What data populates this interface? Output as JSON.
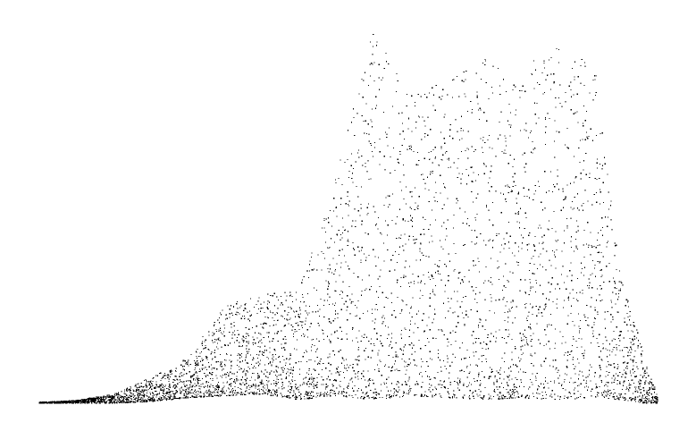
{
  "chart_data": {
    "type": "scatter",
    "title": "",
    "xlabel": "",
    "ylabel": "",
    "grid": false,
    "axes_visible": false,
    "xlim": [
      0,
      1000
    ],
    "ylim": [
      0,
      1000
    ],
    "marker_color": "#000000",
    "background_color": "#ffffff",
    "points_estimated": true,
    "density_profile": [
      {
        "x": 0,
        "min": 0,
        "max": 3
      },
      {
        "x": 60,
        "min": 0,
        "max": 8
      },
      {
        "x": 120,
        "min": 0,
        "max": 25
      },
      {
        "x": 180,
        "min": 5,
        "max": 70
      },
      {
        "x": 240,
        "min": 15,
        "max": 120
      },
      {
        "x": 300,
        "min": 20,
        "max": 260
      },
      {
        "x": 360,
        "min": 25,
        "max": 290
      },
      {
        "x": 420,
        "min": 10,
        "max": 300
      },
      {
        "x": 480,
        "min": 20,
        "max": 600
      },
      {
        "x": 540,
        "min": 10,
        "max": 1000
      },
      {
        "x": 600,
        "min": 20,
        "max": 820
      },
      {
        "x": 660,
        "min": 15,
        "max": 860
      },
      {
        "x": 720,
        "min": 10,
        "max": 920
      },
      {
        "x": 780,
        "min": 15,
        "max": 850
      },
      {
        "x": 840,
        "min": 10,
        "max": 960
      },
      {
        "x": 900,
        "min": 15,
        "max": 900
      },
      {
        "x": 940,
        "min": 10,
        "max": 340
      },
      {
        "x": 980,
        "min": 0,
        "max": 120
      },
      {
        "x": 1000,
        "min": 0,
        "max": 20
      }
    ],
    "series": [
      {
        "points": [
          {
            "x": 0,
            "y": 1
          },
          {
            "x": 20,
            "y": 2
          },
          {
            "x": 40,
            "y": 3
          },
          {
            "x": 60,
            "y": 4
          },
          {
            "x": 80,
            "y": 8
          },
          {
            "x": 100,
            "y": 10
          },
          {
            "x": 120,
            "y": 18
          },
          {
            "x": 140,
            "y": 24
          },
          {
            "x": 160,
            "y": 42
          },
          {
            "x": 180,
            "y": 58
          },
          {
            "x": 200,
            "y": 48
          },
          {
            "x": 220,
            "y": 72
          },
          {
            "x": 240,
            "y": 110
          },
          {
            "x": 260,
            "y": 125
          },
          {
            "x": 280,
            "y": 180
          },
          {
            "x": 300,
            "y": 200
          },
          {
            "x": 320,
            "y": 270
          },
          {
            "x": 340,
            "y": 245
          },
          {
            "x": 360,
            "y": 160
          },
          {
            "x": 380,
            "y": 220
          },
          {
            "x": 400,
            "y": 285
          },
          {
            "x": 420,
            "y": 230
          },
          {
            "x": 440,
            "y": 150
          },
          {
            "x": 460,
            "y": 170
          },
          {
            "x": 480,
            "y": 520
          },
          {
            "x": 500,
            "y": 430
          },
          {
            "x": 520,
            "y": 380
          },
          {
            "x": 540,
            "y": 980
          },
          {
            "x": 560,
            "y": 720
          },
          {
            "x": 580,
            "y": 640
          },
          {
            "x": 600,
            "y": 520
          },
          {
            "x": 620,
            "y": 760
          },
          {
            "x": 640,
            "y": 680
          },
          {
            "x": 660,
            "y": 820
          },
          {
            "x": 680,
            "y": 700
          },
          {
            "x": 700,
            "y": 780
          },
          {
            "x": 720,
            "y": 610
          },
          {
            "x": 740,
            "y": 450
          },
          {
            "x": 760,
            "y": 740
          },
          {
            "x": 780,
            "y": 830
          },
          {
            "x": 800,
            "y": 910
          },
          {
            "x": 820,
            "y": 560
          },
          {
            "x": 840,
            "y": 940
          },
          {
            "x": 860,
            "y": 780
          },
          {
            "x": 880,
            "y": 620
          },
          {
            "x": 900,
            "y": 870
          },
          {
            "x": 920,
            "y": 430
          },
          {
            "x": 940,
            "y": 300
          },
          {
            "x": 960,
            "y": 190
          },
          {
            "x": 980,
            "y": 80
          },
          {
            "x": 1000,
            "y": 6
          }
        ]
      }
    ]
  }
}
